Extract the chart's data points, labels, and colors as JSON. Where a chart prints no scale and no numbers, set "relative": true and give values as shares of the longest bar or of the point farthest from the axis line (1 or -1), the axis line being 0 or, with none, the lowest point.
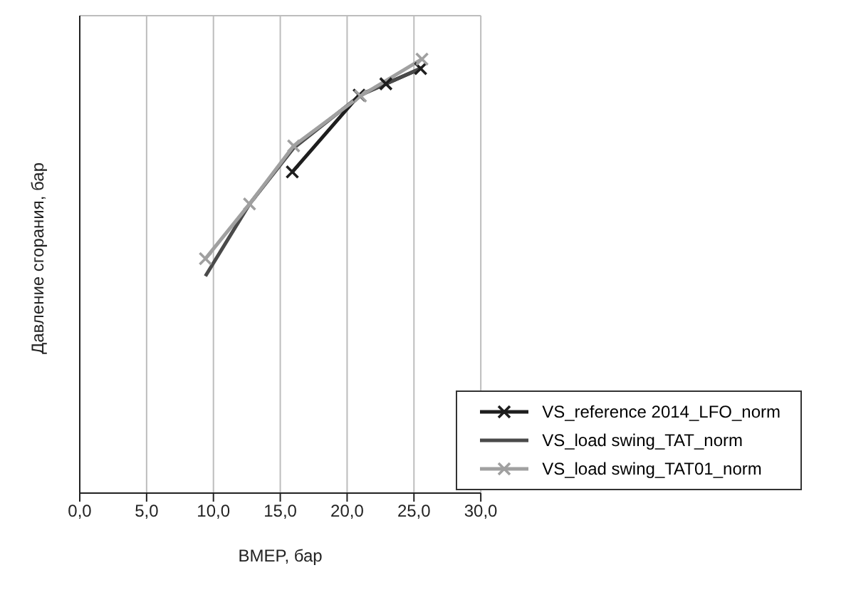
{
  "chart_data": {
    "type": "line",
    "relative": true,
    "xlabel": "BMEP, бар",
    "ylabel": "Давление сгорания, бар",
    "xlim": [
      0,
      30
    ],
    "xticks": [
      {
        "value": 0,
        "label": "0,0"
      },
      {
        "value": 5,
        "label": "5,0"
      },
      {
        "value": 10,
        "label": "10,0"
      },
      {
        "value": 15,
        "label": "15,0"
      },
      {
        "value": 20,
        "label": "20,0"
      },
      {
        "value": 25,
        "label": "25,0"
      },
      {
        "value": 30,
        "label": "30,0"
      }
    ],
    "grid": true,
    "legend": "bottom right",
    "series": [
      {
        "name": "VS_reference 2014_LFO_norm",
        "color": "#1e1e1e",
        "marker": "cross",
        "x": [
          15.9,
          20.9,
          22.9,
          25.5
        ],
        "values": [
          0.74,
          0.917,
          0.943,
          0.978
        ]
      },
      {
        "name": "VS_load swing_TAT_norm",
        "color": "#4a4a4a",
        "marker": "none",
        "x": [
          9.4,
          12.7,
          16.0,
          21.0,
          25.6
        ],
        "values": [
          0.5,
          0.666,
          0.795,
          0.917,
          0.98
        ]
      },
      {
        "name": "VS_load swing_TAT01_norm",
        "color": "#a0a0a0",
        "marker": "cross",
        "x": [
          9.4,
          12.7,
          16.0,
          21.0,
          25.6
        ],
        "values": [
          0.54,
          0.666,
          0.8,
          0.915,
          1
        ]
      }
    ]
  }
}
